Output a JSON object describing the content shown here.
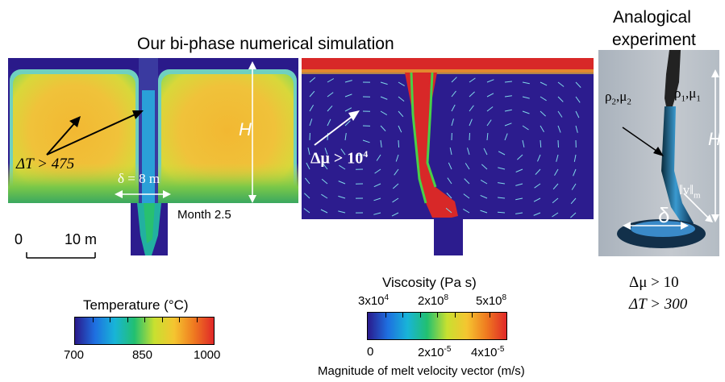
{
  "header": {
    "simulation_title": "Our bi-phase numerical simulation",
    "experiment_title_line1": "Analogical",
    "experiment_title_line2": "experiment"
  },
  "temperature_panel": {
    "delta_t_label": "ΔT > 475",
    "delta_label": "δ = 8 m",
    "height_label": "H",
    "time_label": "Month 2.5"
  },
  "scale_bar": {
    "start": "0",
    "end": "10 m"
  },
  "viscosity_panel": {
    "delta_mu_label": "Δμ > 10",
    "delta_mu_exponent": "4"
  },
  "experiment_panel": {
    "rho2_label": "ρ",
    "rho2_sub": "2",
    "mu2_label": ",μ",
    "mu2_sub": "2",
    "rho1_label": "ρ",
    "rho1_sub": "1",
    "mu1_label": ",μ",
    "mu1_sub": "1",
    "height_label": "H",
    "delta_label": "δ",
    "velocity_label": "‖v‖",
    "velocity_sub": "m",
    "delta_mu_caption": "Δμ > 10",
    "delta_t_caption": "ΔT > 300"
  },
  "temperature_colorbar": {
    "title": "Temperature (°C)",
    "ticks": [
      "700",
      "850",
      "1000"
    ],
    "colors": [
      "#2a1a8c",
      "#1e6fe0",
      "#18b4d8",
      "#22c070",
      "#c8e030",
      "#f5c530",
      "#ef7a20",
      "#e02828"
    ]
  },
  "viscosity_colorbar": {
    "title": "Viscosity (Pa s)",
    "top_ticks": [
      "3x10",
      "2x10",
      "5x10"
    ],
    "top_exponents": [
      "4",
      "8",
      "8"
    ],
    "bottom_ticks": [
      "0",
      "2x10",
      "4x10"
    ],
    "bottom_exponents": [
      "",
      "-5",
      "-5"
    ],
    "bottom_title": "Magnitude of melt velocity vector (m/s)",
    "colors": [
      "#2a1a8c",
      "#1e6fe0",
      "#18b4d8",
      "#22c070",
      "#c8e030",
      "#f5c530",
      "#ef7a20",
      "#e02828"
    ]
  }
}
